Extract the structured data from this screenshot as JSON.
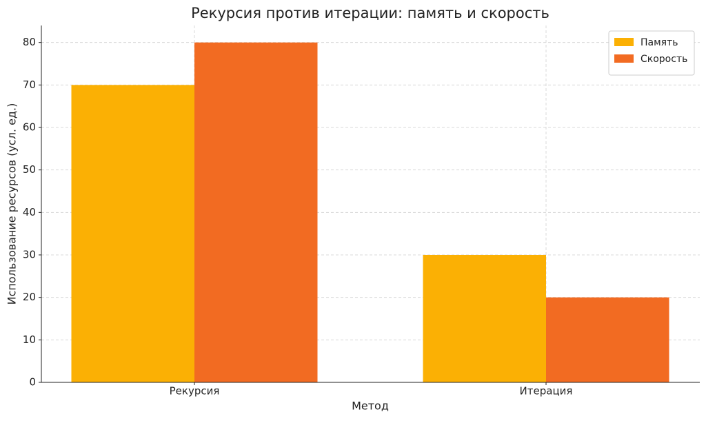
{
  "chart_data": {
    "type": "bar",
    "title": "Рекурсия против итерации: память и скорость",
    "x_label": "Метод",
    "y_label": "Использование ресурсов (усл. ед.)",
    "categories": [
      "Рекурсия",
      "Итерация"
    ],
    "series": [
      {
        "name": "Память",
        "color": "#fbb004",
        "values": [
          70,
          30
        ]
      },
      {
        "name": "Скорость",
        "color": "#f26b22",
        "values": [
          80,
          20
        ]
      }
    ],
    "ylim": [
      0,
      84
    ],
    "yticks": [
      0,
      10,
      20,
      30,
      40,
      50,
      60,
      70,
      80
    ],
    "grid": true,
    "legend": "upper right"
  }
}
